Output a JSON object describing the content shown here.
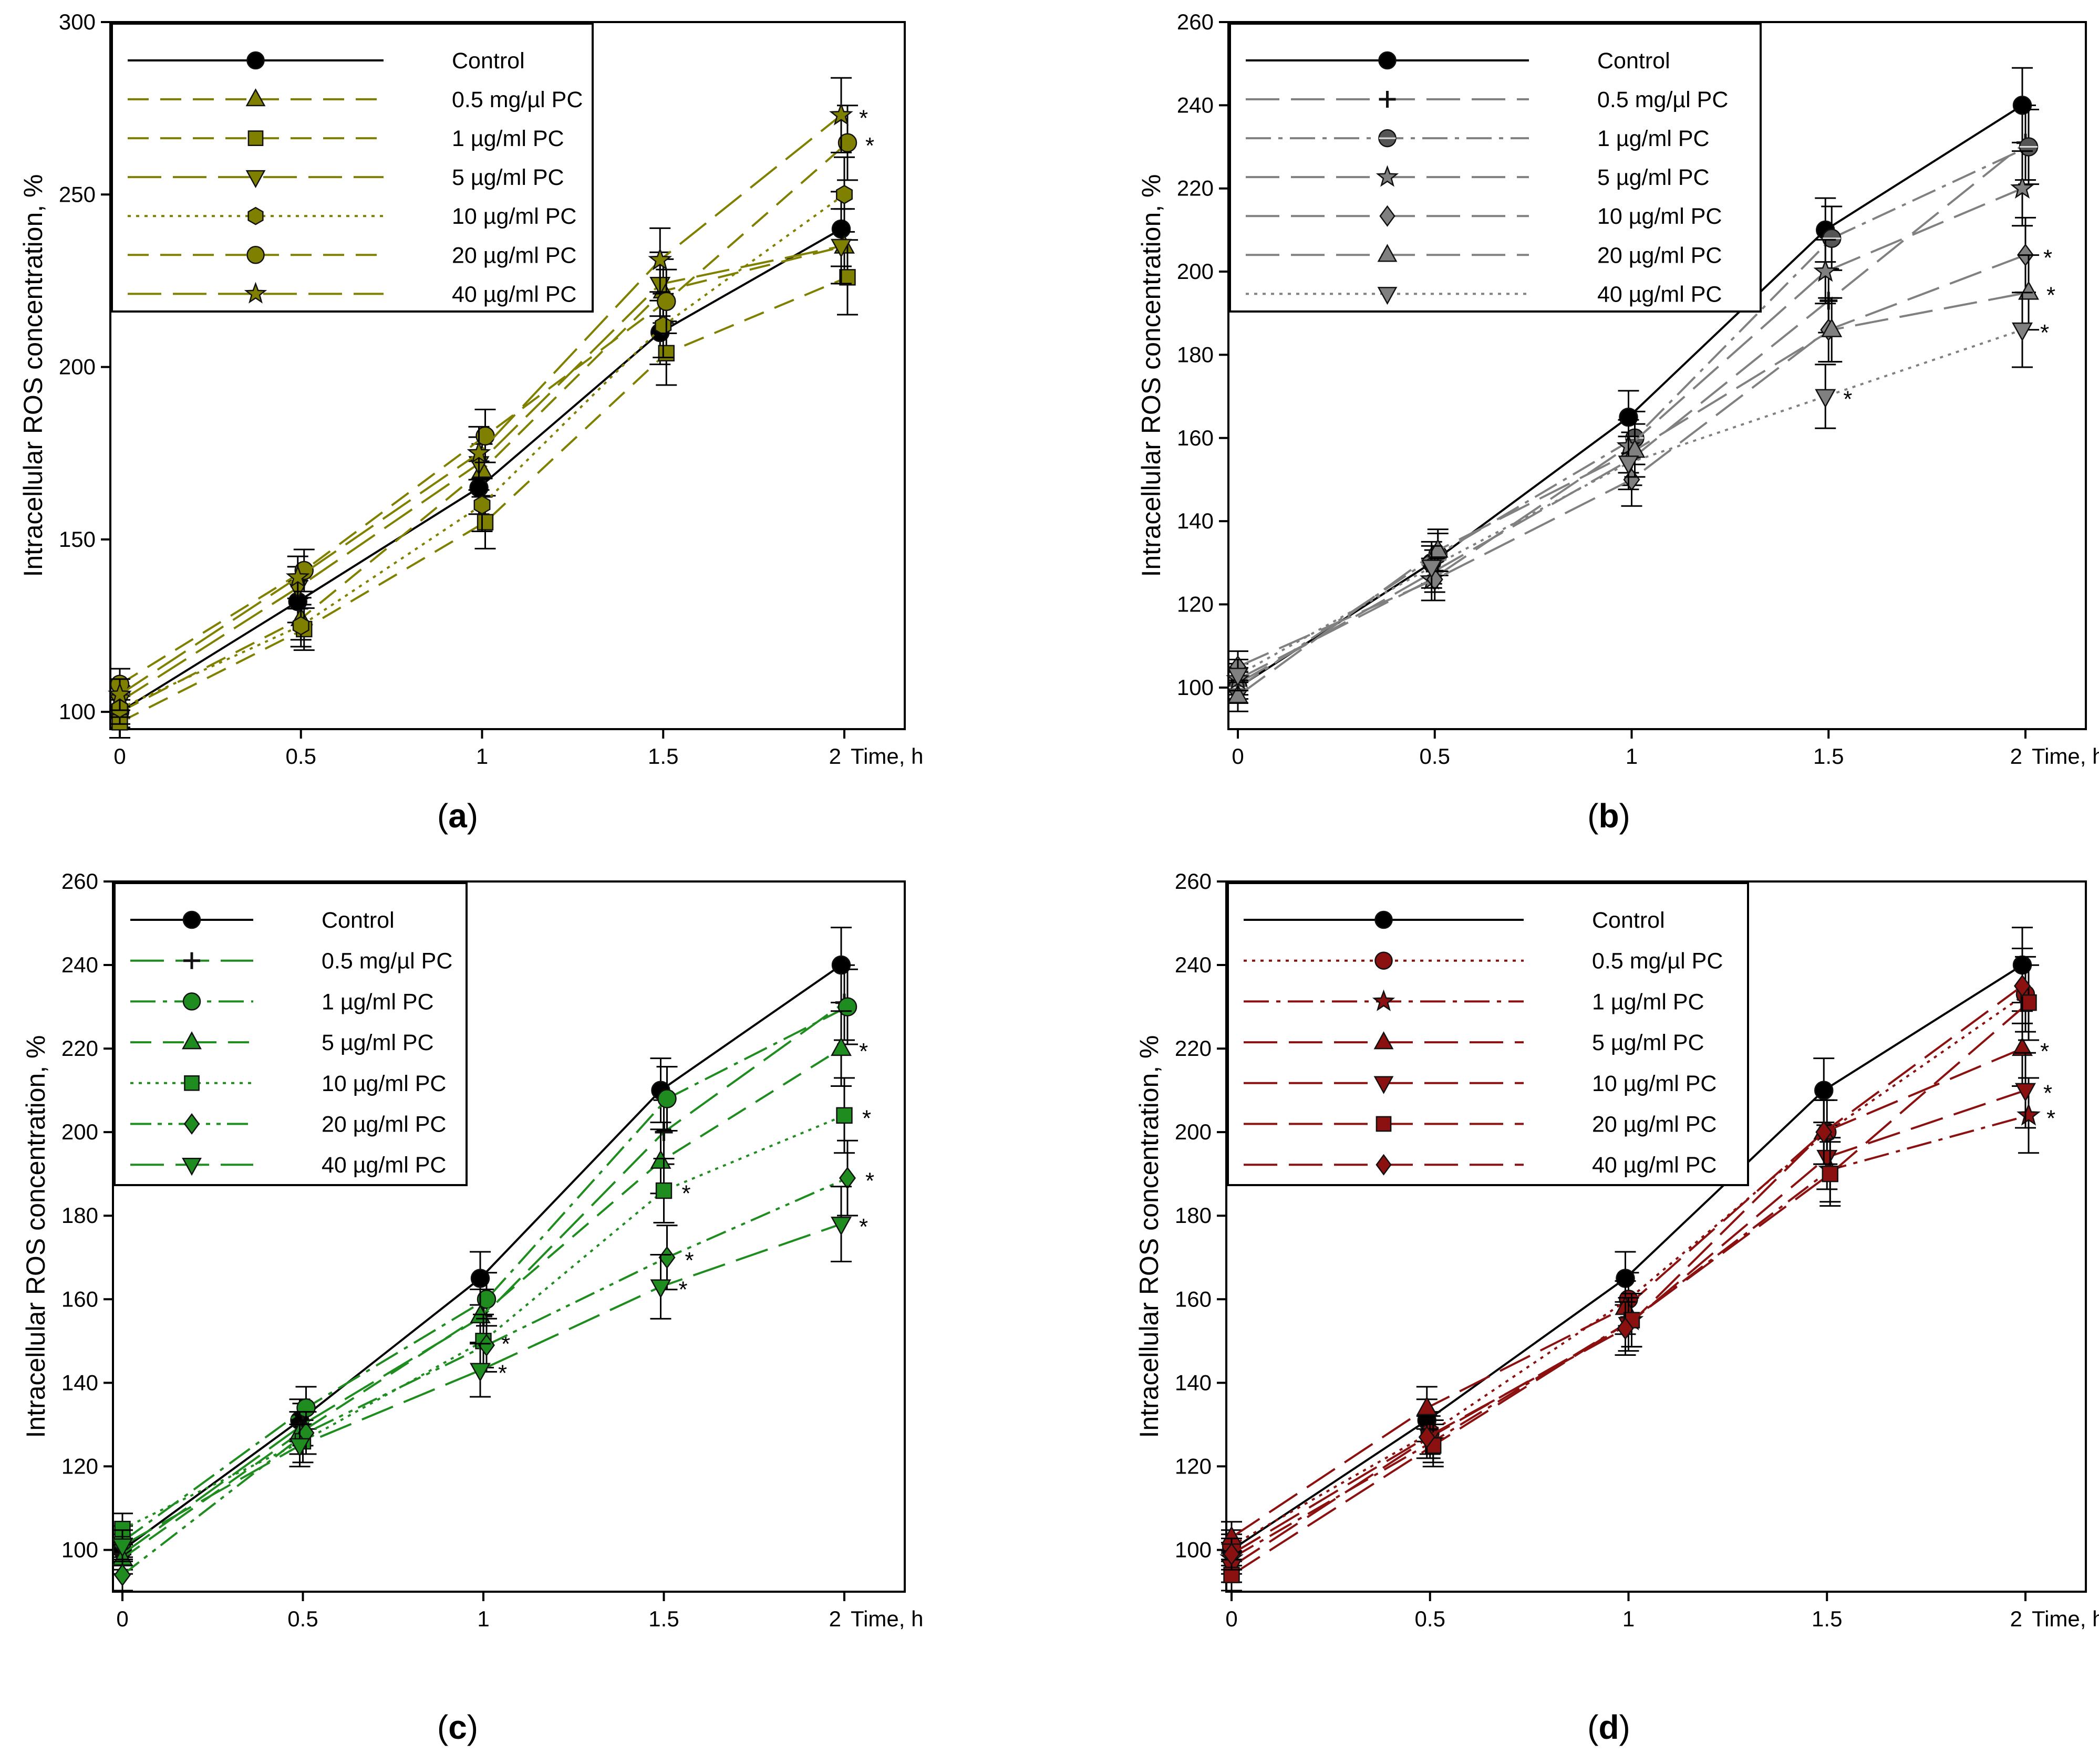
{
  "figure": {
    "x_unit_label": "Time, h",
    "x_ticks": [
      "0",
      "0.5",
      "1",
      "1.5",
      "2"
    ],
    "ylabel": "Intracellular ROS concentration, %",
    "legend_entries": [
      "Control",
      "0.5 mg/µl PC",
      "1 µg/ml PC",
      "5 µg/ml PC",
      "10 µg/ml PC",
      "20 µg/ml PC",
      "40 µg/ml PC"
    ],
    "legend_entries_alt": [
      "Control",
      "0.5 mg/µl PC",
      "1 µg/ml PC",
      "5  µg/ml PC",
      "10 µg/ml PC",
      "20 µg/ml PC",
      "40 µg/ml PC"
    ]
  },
  "chart_data": [
    {
      "type": "line",
      "panel_label": "(a)",
      "color": "#808000",
      "x": [
        0,
        0.5,
        1,
        1.5,
        2
      ],
      "xlabel": "Time, h",
      "ylabel": "Intracellular ROS concentration, %",
      "ylim": [
        95,
        300
      ],
      "yticks": [
        100,
        150,
        200,
        250,
        300
      ],
      "series": [
        {
          "name": "Control",
          "values": [
            100,
            132,
            165,
            210,
            240
          ],
          "marker": "circle",
          "dash": "solid",
          "significant": [
            false,
            false,
            false,
            false,
            false
          ]
        },
        {
          "name": "0.5 mg/µl PC",
          "values": [
            100,
            127,
            170,
            222,
            235
          ],
          "marker": "triangle-up",
          "dash": "dash",
          "significant": [
            false,
            false,
            false,
            false,
            false
          ]
        },
        {
          "name": "1 µg/ml PC",
          "values": [
            97,
            124,
            155,
            204,
            226
          ],
          "marker": "square",
          "dash": "dash",
          "significant": [
            false,
            false,
            false,
            false,
            false
          ]
        },
        {
          "name": "5 µg/ml PC",
          "values": [
            103,
            136,
            172,
            224,
            235
          ],
          "marker": "triangle-down",
          "dash": "longdash",
          "significant": [
            false,
            false,
            false,
            false,
            false
          ]
        },
        {
          "name": "10 µg/ml PC",
          "values": [
            101,
            125,
            160,
            212,
            250
          ],
          "marker": "hexagon",
          "dash": "dot",
          "significant": [
            false,
            false,
            false,
            false,
            false
          ]
        },
        {
          "name": "20 µg/ml PC",
          "values": [
            108,
            141,
            180,
            219,
            265
          ],
          "marker": "circle",
          "dash": "dash",
          "significant": [
            false,
            false,
            false,
            false,
            true
          ]
        },
        {
          "name": "40 µg/ml PC",
          "values": [
            105,
            139,
            175,
            231,
            273
          ],
          "marker": "star",
          "dash": "longdash",
          "significant": [
            false,
            false,
            false,
            false,
            true
          ]
        }
      ]
    },
    {
      "type": "line",
      "panel_label": "(b)",
      "color": "#808080",
      "x": [
        0,
        0.5,
        1,
        1.5,
        2
      ],
      "xlabel": "Time, h",
      "ylabel": "Intracellular ROS concentration, %",
      "ylim": [
        90,
        260
      ],
      "yticks": [
        100,
        120,
        140,
        160,
        180,
        200,
        220,
        240,
        260
      ],
      "series": [
        {
          "name": "Control",
          "values": [
            100,
            130,
            165,
            210,
            240
          ],
          "marker": "circle",
          "dash": "solid",
          "significant": [
            false,
            false,
            false,
            false,
            false
          ]
        },
        {
          "name": "0.5 mg/µl PC",
          "values": [
            101,
            128,
            155,
            193,
            231
          ],
          "marker": "plus",
          "dash": "longdash",
          "significant": [
            false,
            false,
            false,
            false,
            false
          ]
        },
        {
          "name": "1 µg/ml PC",
          "values": [
            100,
            132,
            160,
            208,
            230
          ],
          "marker": "circle-half",
          "dash": "dashdot",
          "significant": [
            false,
            false,
            false,
            false,
            false
          ]
        },
        {
          "name": "5 µg/ml PC",
          "values": [
            102,
            126,
            158,
            200,
            220
          ],
          "marker": "star",
          "dash": "longdash",
          "significant": [
            false,
            false,
            false,
            false,
            false
          ]
        },
        {
          "name": "10 µg/ml PC",
          "values": [
            105,
            126,
            150,
            186,
            204
          ],
          "marker": "diamond",
          "dash": "longdash",
          "significant": [
            false,
            false,
            false,
            false,
            true
          ]
        },
        {
          "name": "20 µg/ml PC",
          "values": [
            98,
            133,
            157,
            186,
            195
          ],
          "marker": "triangle-up",
          "dash": "longdash",
          "significant": [
            false,
            false,
            false,
            false,
            true
          ]
        },
        {
          "name": "40 µg/ml PC",
          "values": [
            103,
            129,
            154,
            170,
            186
          ],
          "marker": "triangle-down",
          "dash": "dot",
          "significant": [
            false,
            false,
            false,
            true,
            true
          ]
        }
      ]
    },
    {
      "type": "line",
      "panel_label": "(c)",
      "color": "#1e8c1e",
      "x": [
        0,
        0.5,
        1,
        1.5,
        2
      ],
      "xlabel": "Time, h",
      "ylabel": "Intracellular ROS concentration, %",
      "ylim": [
        90,
        260
      ],
      "yticks": [
        100,
        120,
        140,
        160,
        180,
        200,
        220,
        240,
        260
      ],
      "series": [
        {
          "name": "Control",
          "values": [
            100,
            131,
            165,
            210,
            240
          ],
          "marker": "circle",
          "dash": "solid",
          "significant": [
            false,
            false,
            false,
            false,
            false
          ]
        },
        {
          "name": "0.5 mg/µl PC",
          "values": [
            99,
            130,
            156,
            200,
            231
          ],
          "marker": "plus",
          "dash": "longdash",
          "significant": [
            false,
            false,
            false,
            false,
            false
          ]
        },
        {
          "name": "1 µg/ml PC",
          "values": [
            102,
            134,
            160,
            208,
            230
          ],
          "marker": "circle",
          "dash": "dashdot",
          "significant": [
            false,
            false,
            false,
            false,
            false
          ]
        },
        {
          "name": "5 µg/ml PC",
          "values": [
            98,
            128,
            156,
            193,
            220
          ],
          "marker": "triangle-up",
          "dash": "dash",
          "significant": [
            false,
            false,
            false,
            false,
            true
          ]
        },
        {
          "name": "10 µg/ml PC",
          "values": [
            105,
            126,
            150,
            186,
            204
          ],
          "marker": "square",
          "dash": "dot",
          "significant": [
            false,
            false,
            true,
            true,
            true
          ]
        },
        {
          "name": "20 µg/ml PC",
          "values": [
            94,
            128,
            149,
            170,
            189
          ],
          "marker": "diamond",
          "dash": "dashdotdot",
          "significant": [
            false,
            false,
            false,
            true,
            true
          ]
        },
        {
          "name": "40 µg/ml PC",
          "values": [
            101,
            125,
            143,
            163,
            178
          ],
          "marker": "triangle-down",
          "dash": "longdash",
          "significant": [
            false,
            false,
            true,
            true,
            true
          ]
        }
      ]
    },
    {
      "type": "line",
      "panel_label": "(d)",
      "color": "#8b1010",
      "x": [
        0,
        0.5,
        1,
        1.5,
        2
      ],
      "xlabel": "Time, h",
      "ylabel": "Intracellular ROS concentration, %",
      "ylim": [
        90,
        260
      ],
      "yticks": [
        100,
        120,
        140,
        160,
        180,
        200,
        220,
        240,
        260
      ],
      "series": [
        {
          "name": "Control",
          "values": [
            100,
            131,
            165,
            210,
            240
          ],
          "marker": "circle",
          "dash": "solid",
          "significant": [
            false,
            false,
            false,
            false,
            false
          ]
        },
        {
          "name": "0.5 mg/µl PC",
          "values": [
            101,
            128,
            160,
            200,
            233
          ],
          "marker": "circle",
          "dash": "dot",
          "significant": [
            false,
            false,
            false,
            false,
            false
          ]
        },
        {
          "name": "1 µg/ml PC",
          "values": [
            98,
            126,
            155,
            191,
            204
          ],
          "marker": "star",
          "dash": "dashdot",
          "significant": [
            false,
            false,
            false,
            false,
            true
          ]
        },
        {
          "name": "5 µg/ml PC",
          "values": [
            103,
            134,
            158,
            200,
            220
          ],
          "marker": "triangle-up",
          "dash": "longdash",
          "significant": [
            false,
            false,
            false,
            false,
            true
          ]
        },
        {
          "name": "10 µg/ml PC",
          "values": [
            96,
            127,
            154,
            194,
            210
          ],
          "marker": "triangle-down",
          "dash": "longdash",
          "significant": [
            false,
            false,
            false,
            false,
            true
          ]
        },
        {
          "name": "20 µg/ml PC",
          "values": [
            94,
            125,
            155,
            190,
            231
          ],
          "marker": "square",
          "dash": "longdash",
          "significant": [
            false,
            false,
            false,
            false,
            false
          ]
        },
        {
          "name": "40 µg/ml PC",
          "values": [
            99,
            127,
            153,
            200,
            235
          ],
          "marker": "diamond",
          "dash": "longdash",
          "significant": [
            false,
            false,
            false,
            false,
            false
          ]
        }
      ]
    }
  ]
}
